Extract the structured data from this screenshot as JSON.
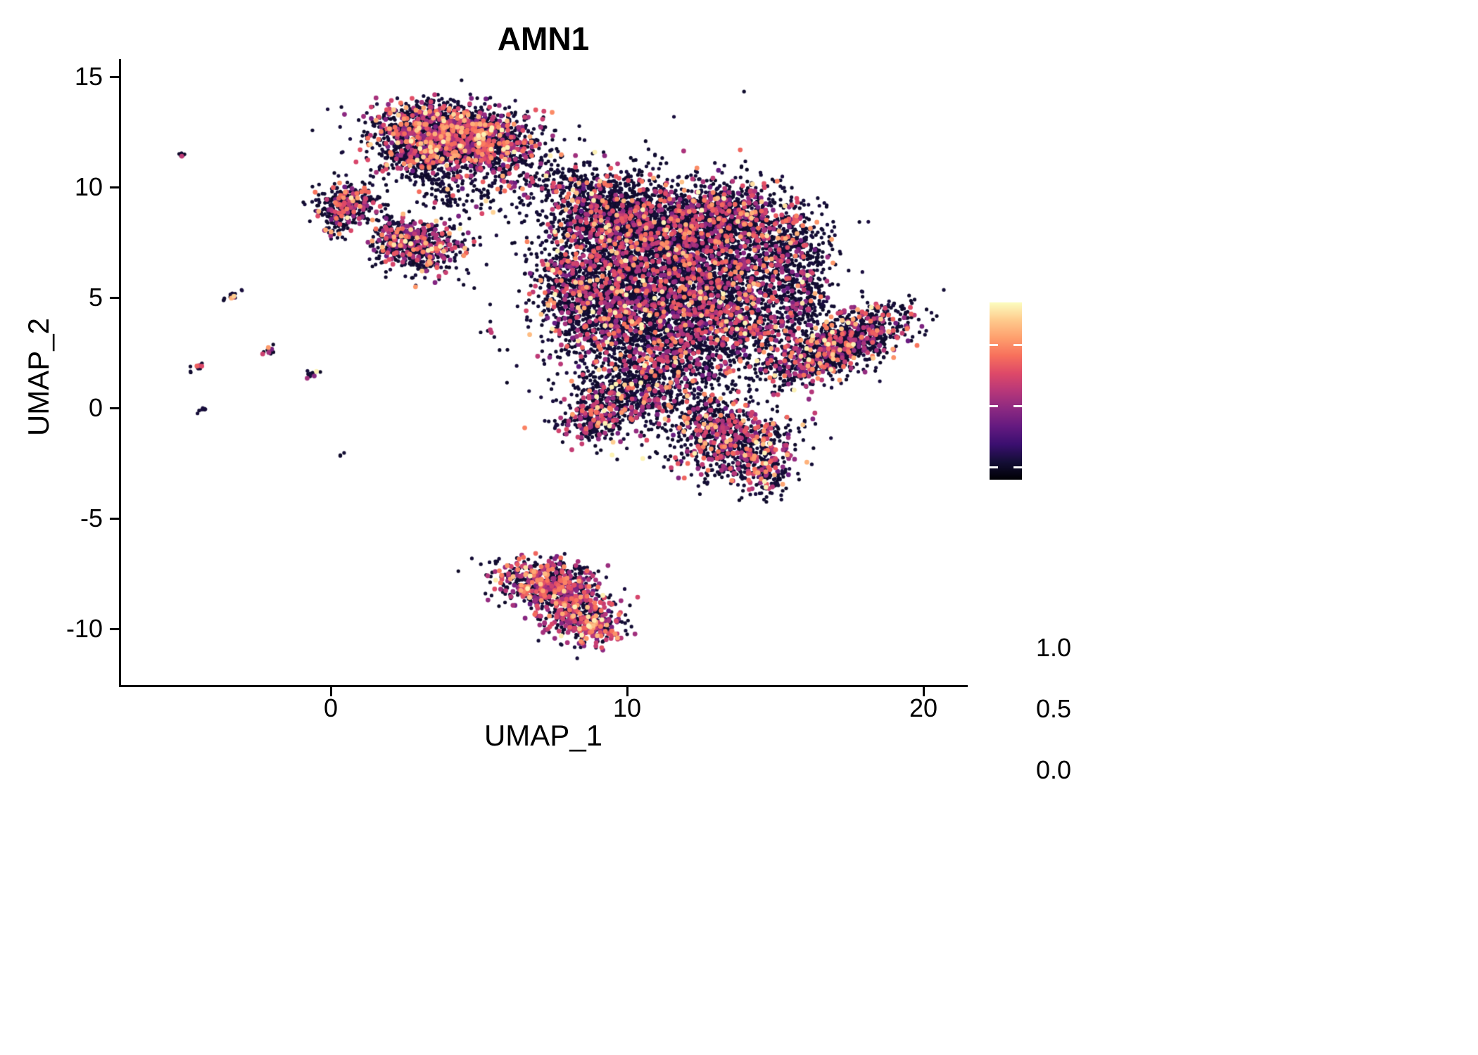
{
  "chart_data": {
    "type": "scatter",
    "title": "AMN1",
    "xlabel": "UMAP_1",
    "ylabel": "UMAP_2",
    "xlim": [
      -7,
      21.5
    ],
    "ylim": [
      -12.5,
      15.7
    ],
    "grid": false,
    "x_ticks": [
      "0",
      "10",
      "20"
    ],
    "x_tick_values": [
      0,
      10,
      20
    ],
    "y_ticks": [
      "15",
      "10",
      "5",
      "0",
      "-5",
      "-10"
    ],
    "y_tick_values": [
      15,
      10,
      5,
      0,
      -5,
      -10
    ],
    "colorbar": {
      "ticks": [
        "1.0",
        "0.5",
        "0.0"
      ],
      "tick_values": [
        1.0,
        0.5,
        0.0
      ],
      "domain": [
        -0.1,
        1.35
      ],
      "position": "right"
    },
    "colormap": {
      "name": "magma",
      "stops": [
        [
          0.0,
          "#000004"
        ],
        [
          0.1,
          "#140e36"
        ],
        [
          0.2,
          "#3b0f70"
        ],
        [
          0.3,
          "#641a80"
        ],
        [
          0.4,
          "#8c2981"
        ],
        [
          0.5,
          "#b73779"
        ],
        [
          0.6,
          "#de4968"
        ],
        [
          0.7,
          "#f7705c"
        ],
        [
          0.8,
          "#fe9f6d"
        ],
        [
          0.9,
          "#feca8d"
        ],
        [
          1.0,
          "#fcfdbf"
        ]
      ]
    },
    "point_style": {
      "radius_zero": 2.6,
      "radius_expressed": 3.4
    },
    "clusters": [
      {
        "name": "top-main",
        "cx": 4.2,
        "cy": 12.5,
        "sx": 1.35,
        "sy": 0.62,
        "rot": -8,
        "n": 1500,
        "frac": 0.3
      },
      {
        "name": "top-left",
        "cx": 3.15,
        "cy": 11.7,
        "sx": 0.8,
        "sy": 0.55,
        "rot": 0,
        "n": 500,
        "frac": 0.28
      },
      {
        "name": "top-right",
        "cx": 5.2,
        "cy": 11.7,
        "sx": 0.7,
        "sy": 0.55,
        "rot": 0,
        "n": 350,
        "frac": 0.25
      },
      {
        "name": "top-trail",
        "cx": 3.8,
        "cy": 10.4,
        "sx": 0.55,
        "sy": 0.75,
        "rot": 0,
        "n": 140,
        "frac": 0.2
      },
      {
        "name": "left-blob",
        "cx": 0.6,
        "cy": 9.3,
        "sx": 0.55,
        "sy": 0.45,
        "rot": 0,
        "n": 300,
        "frac": 0.25
      },
      {
        "name": "left-blob-tail",
        "cx": 0.25,
        "cy": 8.4,
        "sx": 0.28,
        "sy": 0.38,
        "rot": 0,
        "n": 70,
        "frac": 0.2
      },
      {
        "name": "mid-left-blob",
        "cx": 3.0,
        "cy": 7.3,
        "sx": 0.75,
        "sy": 0.55,
        "rot": 0,
        "n": 480,
        "frac": 0.3
      },
      {
        "name": "mid-left-blob2",
        "cx": 2.2,
        "cy": 7.9,
        "sx": 0.4,
        "sy": 0.38,
        "rot": 0,
        "n": 120,
        "frac": 0.25
      },
      {
        "name": "bridge1",
        "cx": 6.3,
        "cy": 10.5,
        "sx": 1.1,
        "sy": 0.6,
        "rot": 0,
        "n": 110,
        "frac": 0.15
      },
      {
        "name": "bridge2",
        "cx": 8.0,
        "cy": 10.2,
        "sx": 0.6,
        "sy": 0.5,
        "rot": 0,
        "n": 90,
        "frac": 0.2
      },
      {
        "name": "bridge3",
        "cx": 5.0,
        "cy": 9.2,
        "sx": 0.7,
        "sy": 0.6,
        "rot": 0,
        "n": 50,
        "frac": 0.1
      },
      {
        "name": "main-nw",
        "cx": 9.3,
        "cy": 8.7,
        "sx": 1.05,
        "sy": 1.0,
        "rot": 0,
        "n": 900,
        "frac": 0.22
      },
      {
        "name": "main-n",
        "cx": 11.5,
        "cy": 8.2,
        "sx": 1.5,
        "sy": 1.15,
        "rot": 0,
        "n": 1300,
        "frac": 0.22
      },
      {
        "name": "main-ne",
        "cx": 13.5,
        "cy": 8.7,
        "sx": 0.9,
        "sy": 0.75,
        "rot": 0,
        "n": 600,
        "frac": 0.22
      },
      {
        "name": "main-c",
        "cx": 10.8,
        "cy": 5.8,
        "sx": 1.55,
        "sy": 1.5,
        "rot": 0,
        "n": 1600,
        "frac": 0.22
      },
      {
        "name": "main-e",
        "cx": 13.2,
        "cy": 5.2,
        "sx": 1.15,
        "sy": 1.3,
        "rot": 0,
        "n": 900,
        "frac": 0.22
      },
      {
        "name": "main-w",
        "cx": 9.2,
        "cy": 4.2,
        "sx": 0.9,
        "sy": 1.1,
        "rot": 0,
        "n": 600,
        "frac": 0.22
      },
      {
        "name": "main-wedge",
        "cx": 8.0,
        "cy": 5.6,
        "sx": 0.6,
        "sy": 0.9,
        "rot": 0,
        "n": 280,
        "frac": 0.22
      },
      {
        "name": "main-s",
        "cx": 11.7,
        "cy": 2.6,
        "sx": 1.3,
        "sy": 1.0,
        "rot": 0,
        "n": 800,
        "frac": 0.22
      },
      {
        "name": "main-sw",
        "cx": 9.9,
        "cy": 0.7,
        "sx": 0.9,
        "sy": 0.9,
        "rot": 0,
        "n": 500,
        "frac": 0.22
      },
      {
        "name": "main-sw-tip",
        "cx": 8.8,
        "cy": -0.6,
        "sx": 0.55,
        "sy": 0.5,
        "rot": 30,
        "n": 240,
        "frac": 0.3
      },
      {
        "name": "main-s-sparse",
        "cx": 11.3,
        "cy": 0.4,
        "sx": 0.85,
        "sy": 0.6,
        "rot": 0,
        "n": 150,
        "frac": 0.2
      },
      {
        "name": "main-arm-up",
        "cx": 15.3,
        "cy": 7.2,
        "sx": 0.72,
        "sy": 1.1,
        "rot": -15,
        "n": 430,
        "frac": 0.2
      },
      {
        "name": "main-arm-low",
        "cx": 15.9,
        "cy": 5.2,
        "sx": 0.5,
        "sy": 0.85,
        "rot": 0,
        "n": 220,
        "frac": 0.2
      },
      {
        "name": "main-e-sparse",
        "cx": 14.6,
        "cy": 3.4,
        "sx": 0.7,
        "sy": 0.8,
        "rot": 0,
        "n": 200,
        "frac": 0.15
      },
      {
        "name": "main-fill",
        "cx": 11.4,
        "cy": 5.3,
        "sx": 2.5,
        "sy": 2.5,
        "rot": 0,
        "n": 650,
        "frac": 0.12
      },
      {
        "name": "right-diag",
        "cx": 17.2,
        "cy": 2.9,
        "sx": 1.3,
        "sy": 0.6,
        "rot": 33,
        "n": 1100,
        "frac": 0.25
      },
      {
        "name": "right-conn",
        "cx": 15.3,
        "cy": 1.7,
        "sx": 0.5,
        "sy": 0.35,
        "rot": 20,
        "n": 60,
        "frac": 0.15
      },
      {
        "name": "south-blob",
        "cx": 13.6,
        "cy": -1.6,
        "sx": 1.0,
        "sy": 0.8,
        "rot": 0,
        "n": 700,
        "frac": 0.28
      },
      {
        "name": "south-tail",
        "cx": 14.6,
        "cy": -2.9,
        "sx": 0.45,
        "sy": 0.5,
        "rot": 0,
        "n": 150,
        "frac": 0.3
      },
      {
        "name": "south-top",
        "cx": 12.7,
        "cy": -0.4,
        "sx": 0.5,
        "sy": 0.45,
        "rot": 0,
        "n": 140,
        "frac": 0.2
      },
      {
        "name": "bottom-a",
        "cx": 7.0,
        "cy": -7.9,
        "sx": 0.85,
        "sy": 0.5,
        "rot": -10,
        "n": 430,
        "frac": 0.45
      },
      {
        "name": "bottom-b",
        "cx": 8.2,
        "cy": -9.2,
        "sx": 0.75,
        "sy": 0.65,
        "rot": -30,
        "n": 430,
        "frac": 0.45
      },
      {
        "name": "bottom-c",
        "cx": 8.85,
        "cy": -9.9,
        "sx": 0.45,
        "sy": 0.4,
        "rot": 0,
        "n": 150,
        "frac": 0.5
      },
      {
        "name": "bottom-edge",
        "cx": 7.9,
        "cy": -7.4,
        "sx": 0.75,
        "sy": 0.3,
        "rot": 0,
        "n": 80,
        "frac": 0.3
      },
      {
        "name": "sat-1",
        "cx": -5.05,
        "cy": 11.4,
        "sx": 0.1,
        "sy": 0.05,
        "rot": 35,
        "n": 6,
        "frac": 0.1
      },
      {
        "name": "sat-2",
        "cx": -3.3,
        "cy": 5.15,
        "sx": 0.2,
        "sy": 0.07,
        "rot": 35,
        "n": 14,
        "frac": 0.2
      },
      {
        "name": "sat-3",
        "cx": -4.5,
        "cy": 1.85,
        "sx": 0.2,
        "sy": 0.07,
        "rot": 35,
        "n": 14,
        "frac": 0.3
      },
      {
        "name": "sat-4",
        "cx": -2.1,
        "cy": 2.6,
        "sx": 0.18,
        "sy": 0.07,
        "rot": 35,
        "n": 12,
        "frac": 0.3
      },
      {
        "name": "sat-5",
        "cx": -0.72,
        "cy": 1.5,
        "sx": 0.2,
        "sy": 0.08,
        "rot": 30,
        "n": 14,
        "frac": 0.2
      },
      {
        "name": "sat-6",
        "cx": -4.35,
        "cy": -0.1,
        "sx": 0.1,
        "sy": 0.06,
        "rot": 35,
        "n": 7,
        "frac": 0.1
      },
      {
        "name": "sat-7",
        "cx": 0.35,
        "cy": -2.1,
        "sx": 0.06,
        "sy": 0.05,
        "rot": 0,
        "n": 3,
        "frac": 0
      }
    ]
  }
}
